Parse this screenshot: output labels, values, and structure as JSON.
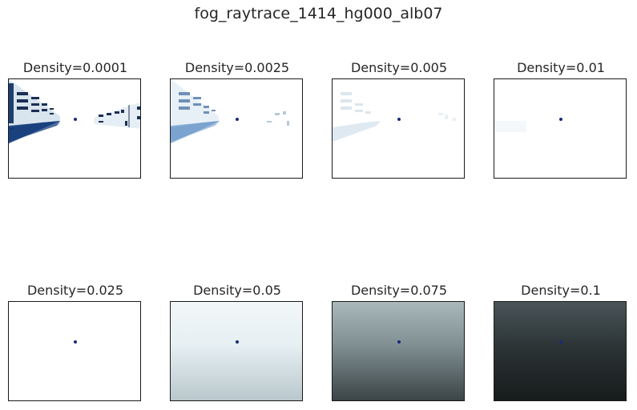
{
  "figure": {
    "title": "fog_raytrace_1414_hg000_alb07",
    "panels": [
      {
        "label": "Density=0.0001",
        "fog_level": 0.0
      },
      {
        "label": "Density=0.0025",
        "fog_level": 0.25
      },
      {
        "label": "Density=0.005",
        "fog_level": 0.55
      },
      {
        "label": "Density=0.01",
        "fog_level": 0.95
      },
      {
        "label": "Density=0.025",
        "fog_level": 1.0
      },
      {
        "label": "Density=0.05",
        "fog_level": 1.0
      },
      {
        "label": "Density=0.075",
        "fog_level": 1.0
      },
      {
        "label": "Density=0.1",
        "fog_level": 1.0
      }
    ]
  },
  "colors": {
    "frame": "#1a1a1a",
    "marker": "#1a2a7a"
  }
}
